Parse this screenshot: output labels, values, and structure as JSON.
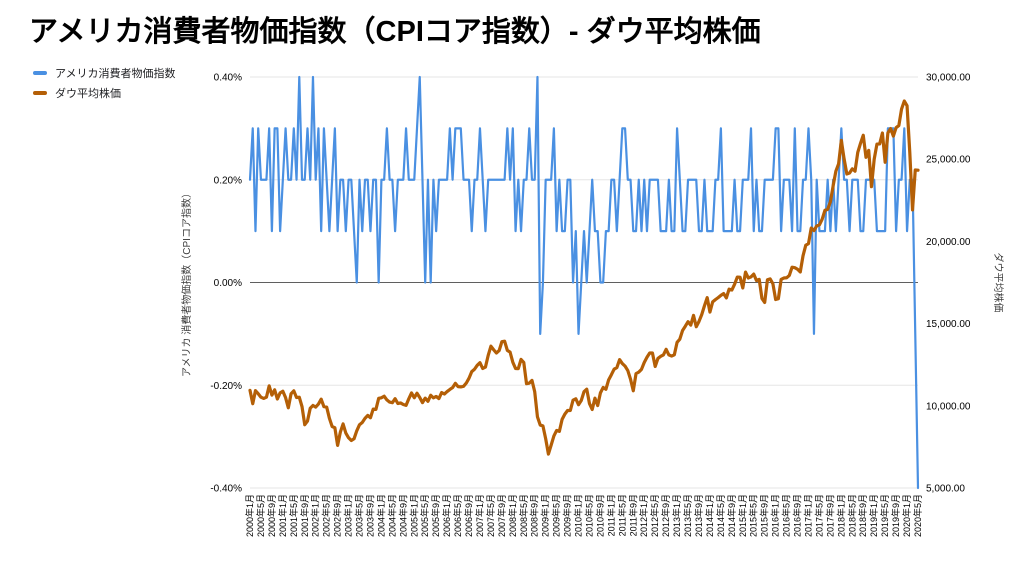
{
  "title": "アメリカ消費者物価指数（CPIコア指数）- ダウ平均株価",
  "colors": {
    "cpi": "#4a90e2",
    "dow": "#b45f06",
    "grid": "#e6e6e6",
    "zero_line": "#5f5f5f",
    "tick_text": "#000000",
    "axis_title_text": "#3c3c3c",
    "background": "#ffffff"
  },
  "legend": [
    {
      "label": "アメリカ消費者物価指数",
      "color": "#4a90e2"
    },
    {
      "label": "ダウ平均株価",
      "color": "#b45f06"
    }
  ],
  "chart_data": {
    "type": "line",
    "title": "アメリカ消費者物価指数（CPIコア指数）- ダウ平均株価",
    "grid": true,
    "legend_position": "top-left",
    "x_label_every": 4,
    "x_labels": [
      "2000年1月",
      "2000年5月",
      "2000年9月",
      "2001年1月",
      "2001年5月",
      "2001年9月",
      "2002年1月",
      "2002年5月",
      "2002年9月",
      "2003年1月",
      "2003年5月",
      "2003年9月",
      "2004年1月",
      "2004年5月",
      "2004年9月",
      "2005年1月",
      "2005年5月",
      "2005年9月",
      "2006年1月",
      "2006年5月",
      "2006年9月",
      "2007年1月",
      "2007年5月",
      "2007年9月",
      "2008年1月",
      "2008年5月",
      "2008年9月",
      "2009年1月",
      "2009年5月",
      "2009年9月",
      "2010年1月",
      "2010年5月",
      "2010年9月",
      "2011年1月",
      "2011年5月",
      "2011年9月",
      "2012年1月",
      "2012年5月",
      "2012年9月",
      "2013年1月",
      "2013年5月",
      "2013年9月",
      "2014年1月",
      "2014年5月",
      "2014年9月",
      "2015年1月",
      "2015年5月",
      "2015年9月",
      "2016年1月",
      "2016年5月",
      "2016年9月",
      "2017年1月",
      "2017年5月",
      "2017年9月",
      "2018年1月",
      "2018年5月",
      "2018年9月",
      "2019年1月",
      "2019年5月",
      "2019年9月",
      "2020年1月",
      "2020年5月"
    ],
    "left_axis": {
      "title": "アメリカ 消費者物価指数（CPIコア指数）",
      "min": -0.4,
      "max": 0.4,
      "ticks": [
        {
          "label": "0.40%",
          "value": 0.4
        },
        {
          "label": "0.20%",
          "value": 0.2
        },
        {
          "label": "0.00%",
          "value": 0.0
        },
        {
          "label": "-0.20%",
          "value": -0.2
        },
        {
          "label": "-0.40%",
          "value": -0.4
        }
      ]
    },
    "right_axis": {
      "title": "ダウ平均株価",
      "min": 5000,
      "max": 30000,
      "ticks": [
        {
          "label": "30,000.00",
          "value": 30000
        },
        {
          "label": "25,000.00",
          "value": 25000
        },
        {
          "label": "20,000.00",
          "value": 20000
        },
        {
          "label": "15,000.00",
          "value": 15000
        },
        {
          "label": "10,000.00",
          "value": 10000
        },
        {
          "label": "5,000.00",
          "value": 5000
        }
      ]
    },
    "series": [
      {
        "name": "アメリカ消費者物価指数",
        "axis": "left",
        "color": "#4a90e2",
        "stroke_width": 2.2,
        "values": [
          0.2,
          0.3,
          0.1,
          0.3,
          0.2,
          0.2,
          0.2,
          0.3,
          0.1,
          0.3,
          0.3,
          0.1,
          0.2,
          0.3,
          0.2,
          0.2,
          0.3,
          0.2,
          0.4,
          0.2,
          0.2,
          0.3,
          0.2,
          0.4,
          0.2,
          0.3,
          0.1,
          0.3,
          0.2,
          0.1,
          0.2,
          0.3,
          0.1,
          0.2,
          0.2,
          0.1,
          0.2,
          0.2,
          0.1,
          0.0,
          0.2,
          0.1,
          0.2,
          0.2,
          0.1,
          0.2,
          0.2,
          0.0,
          0.2,
          0.2,
          0.3,
          0.2,
          0.2,
          0.1,
          0.2,
          0.2,
          0.2,
          0.3,
          0.2,
          0.2,
          0.2,
          0.3,
          0.4,
          0.2,
          0.0,
          0.2,
          0.0,
          0.2,
          0.1,
          0.2,
          0.2,
          0.2,
          0.2,
          0.3,
          0.2,
          0.3,
          0.3,
          0.3,
          0.2,
          0.2,
          0.2,
          0.1,
          0.2,
          0.2,
          0.3,
          0.2,
          0.1,
          0.2,
          0.2,
          0.2,
          0.2,
          0.2,
          0.2,
          0.2,
          0.3,
          0.2,
          0.3,
          0.1,
          0.2,
          0.1,
          0.2,
          0.2,
          0.3,
          0.2,
          0.2,
          0.4,
          -0.1,
          0.0,
          0.2,
          0.2,
          0.2,
          0.3,
          0.1,
          0.2,
          0.1,
          0.1,
          0.2,
          0.2,
          0.0,
          0.1,
          -0.1,
          0.0,
          0.1,
          0.0,
          0.1,
          0.2,
          0.1,
          0.1,
          0.0,
          0.0,
          0.1,
          0.1,
          0.2,
          0.2,
          0.1,
          0.2,
          0.3,
          0.3,
          0.2,
          0.2,
          0.1,
          0.1,
          0.2,
          0.1,
          0.2,
          0.1,
          0.2,
          0.2,
          0.2,
          0.2,
          0.1,
          0.1,
          0.1,
          0.2,
          0.1,
          0.1,
          0.3,
          0.2,
          0.1,
          0.1,
          0.2,
          0.2,
          0.2,
          0.2,
          0.1,
          0.1,
          0.2,
          0.1,
          0.1,
          0.1,
          0.2,
          0.2,
          0.3,
          0.1,
          0.1,
          0.1,
          0.1,
          0.2,
          0.1,
          0.1,
          0.2,
          0.2,
          0.2,
          0.3,
          0.1,
          0.2,
          0.1,
          0.1,
          0.2,
          0.2,
          0.2,
          0.2,
          0.3,
          0.3,
          0.1,
          0.2,
          0.2,
          0.2,
          0.1,
          0.3,
          0.1,
          0.1,
          0.2,
          0.2,
          0.3,
          0.2,
          -0.1,
          0.2,
          0.1,
          0.1,
          0.1,
          0.2,
          0.1,
          0.2,
          0.1,
          0.2,
          0.3,
          0.2,
          0.2,
          0.1,
          0.2,
          0.2,
          0.2,
          0.1,
          0.1,
          0.2,
          0.2,
          0.2,
          0.2,
          0.1,
          0.1,
          0.1,
          0.1,
          0.3,
          0.3,
          0.3,
          0.1,
          0.2,
          0.2,
          0.3,
          0.1,
          0.2,
          0.2,
          -0.1,
          -0.4
        ]
      },
      {
        "name": "ダウ平均株価",
        "axis": "right",
        "color": "#b45f06",
        "stroke_width": 3.2,
        "values": [
          10940,
          10128,
          10922,
          10734,
          10522,
          10448,
          10522,
          11215,
          10651,
          10971,
          10414,
          10787,
          10887,
          10495,
          9879,
          10735,
          10912,
          10502,
          10523,
          9950,
          8848,
          9075,
          9852,
          10022,
          9920,
          10106,
          10404,
          9946,
          9925,
          9243,
          8737,
          8664,
          7592,
          8397,
          8896,
          8342,
          8054,
          7891,
          7992,
          8480,
          8850,
          8985,
          9234,
          9416,
          9275,
          9801,
          9782,
          10454,
          10488,
          10584,
          10358,
          10226,
          10188,
          10435,
          10140,
          10174,
          10080,
          10027,
          10428,
          10783,
          10490,
          10766,
          10504,
          10193,
          10467,
          10275,
          10641,
          10482,
          10569,
          10440,
          10806,
          10718,
          10865,
          10993,
          11109,
          11367,
          11168,
          11150,
          11186,
          11381,
          11679,
          12080,
          12222,
          12463,
          12622,
          12269,
          12354,
          13063,
          13628,
          13409,
          13212,
          13358,
          13896,
          13930,
          13372,
          13265,
          12650,
          12266,
          12263,
          12820,
          12638,
          11350,
          11378,
          11544,
          10851,
          9325,
          8829,
          8776,
          8001,
          7063,
          7609,
          8168,
          8500,
          8447,
          9172,
          9496,
          9712,
          9713,
          10345,
          10428,
          10067,
          10325,
          10857,
          11009,
          10137,
          9774,
          10466,
          10015,
          10788,
          11118,
          11006,
          11578,
          11892,
          12226,
          12320,
          12811,
          12570,
          12414,
          12143,
          11614,
          10913,
          11955,
          12046,
          12218,
          12633,
          12952,
          13212,
          13214,
          12393,
          12880,
          13009,
          13091,
          13437,
          13096,
          13026,
          13104,
          13861,
          14054,
          14579,
          14840,
          15116,
          14910,
          15500,
          14810,
          15130,
          15546,
          16086,
          16577,
          15699,
          16322,
          16458,
          16581,
          16717,
          16827,
          16563,
          17098,
          17043,
          17391,
          17828,
          17823,
          17165,
          18133,
          17776,
          17841,
          18011,
          17620,
          17690,
          16528,
          16285,
          17664,
          17720,
          17425,
          16466,
          16517,
          17685,
          17774,
          17787,
          17930,
          18432,
          18401,
          18308,
          18142,
          19124,
          19763,
          19864,
          20812,
          20663,
          20941,
          21009,
          21350,
          21891,
          21948,
          22405,
          23377,
          24272,
          24719,
          26149,
          25029,
          24103,
          24163,
          24416,
          24271,
          25415,
          25965,
          26458,
          25116,
          25538,
          23327,
          25000,
          25916,
          25929,
          26593,
          24815,
          26600,
          26864,
          26403,
          26917,
          27046,
          28051,
          28538,
          28256,
          25409,
          21917,
          24346,
          24331
        ]
      }
    ]
  }
}
